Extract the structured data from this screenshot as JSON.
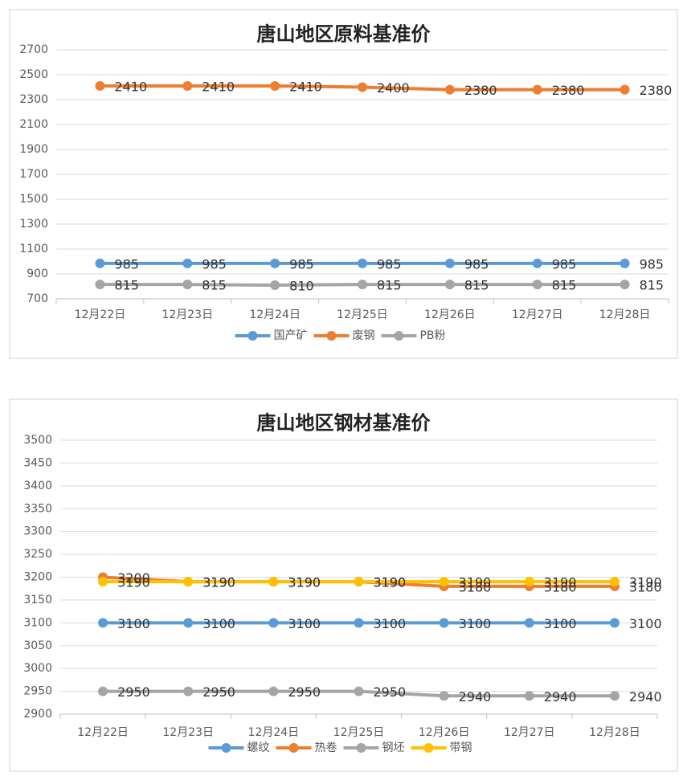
{
  "chart_data": [
    {
      "type": "line",
      "title": "唐山地区原料基准价",
      "categories": [
        "12月22日",
        "12月23日",
        "12月24日",
        "12月25日",
        "12月26日",
        "12月27日",
        "12月28日"
      ],
      "series": [
        {
          "name": "国产矿",
          "color": "#5B9BD5",
          "values": [
            985,
            985,
            985,
            985,
            985,
            985,
            985
          ]
        },
        {
          "name": "废钢",
          "color": "#ED7D31",
          "values": [
            2410,
            2410,
            2410,
            2400,
            2380,
            2380,
            2380
          ]
        },
        {
          "name": "PB粉",
          "color": "#A5A5A5",
          "values": [
            815,
            815,
            810,
            815,
            815,
            815,
            815
          ]
        }
      ],
      "ylim": [
        700,
        2700
      ],
      "yticks": [
        700,
        900,
        1100,
        1300,
        1500,
        1700,
        1900,
        2100,
        2300,
        2500,
        2700
      ],
      "grid": true,
      "legend": "bottom"
    },
    {
      "type": "line",
      "title": "唐山地区钢材基准价",
      "categories": [
        "12月22日",
        "12月23日",
        "12月24日",
        "12月25日",
        "12月26日",
        "12月27日",
        "12月28日"
      ],
      "series": [
        {
          "name": "螺纹",
          "color": "#5B9BD5",
          "values": [
            3100,
            3100,
            3100,
            3100,
            3100,
            3100,
            3100
          ]
        },
        {
          "name": "热卷",
          "color": "#ED7D31",
          "values": [
            3200,
            3190,
            3190,
            3190,
            3180,
            3180,
            3180
          ]
        },
        {
          "name": "钢坯",
          "color": "#A5A5A5",
          "values": [
            2950,
            2950,
            2950,
            2950,
            2940,
            2940,
            2940
          ]
        },
        {
          "name": "带钢",
          "color": "#FFC000",
          "values": [
            3190,
            3190,
            3190,
            3190,
            3190,
            3190,
            3190
          ]
        }
      ],
      "ylim": [
        2900,
        3500
      ],
      "yticks": [
        2900,
        2950,
        3000,
        3050,
        3100,
        3150,
        3200,
        3250,
        3300,
        3350,
        3400,
        3450,
        3500
      ],
      "grid": true,
      "legend": "bottom"
    }
  ]
}
